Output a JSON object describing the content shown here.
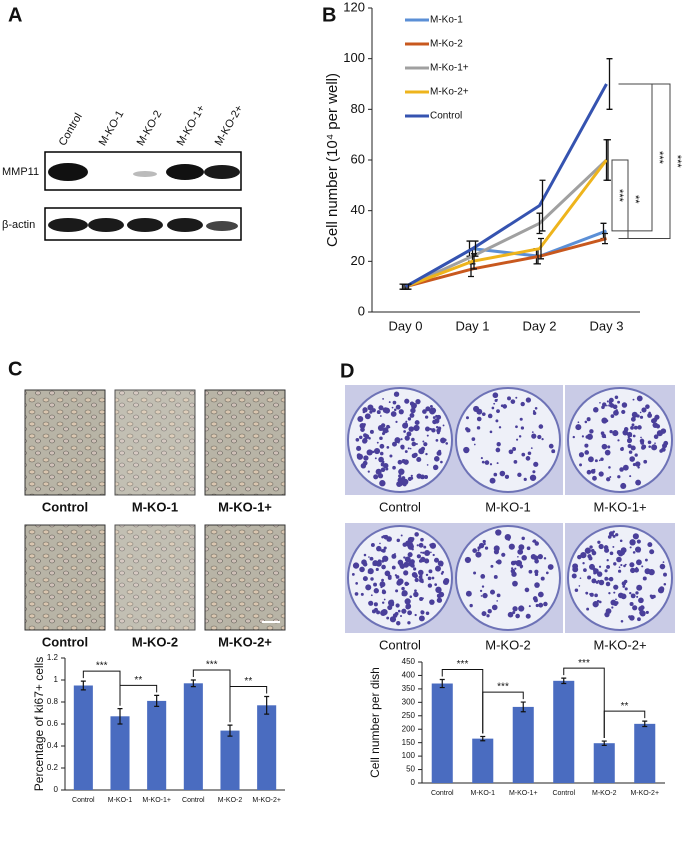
{
  "panel_labels": [
    "A",
    "B",
    "C",
    "D"
  ],
  "blot": {
    "lanes": [
      "Control",
      "M-KO-1",
      "M-KO-2",
      "M-KO-1+",
      "M-KO-2+"
    ],
    "rows": [
      "MMP11",
      "β-actin"
    ]
  },
  "micrographs": {
    "captions": [
      "Control",
      "M-KO-1",
      "M-KO-1+",
      "Control",
      "M-KO-2",
      "M-KO-2+"
    ]
  },
  "colony_dishes": {
    "captions": [
      "Control",
      "M-KO-1",
      "M-KO-1+",
      "Control",
      "M-KO-2",
      "M-KO-2+"
    ]
  },
  "chart_data": [
    {
      "type": "line",
      "ylabel": "Cell number (10⁴ per well)",
      "categories": [
        "Day 0",
        "Day 1",
        "Day 2",
        "Day 3"
      ],
      "series": [
        {
          "name": "M-Ko-1",
          "color": "#5b8fd6",
          "values": [
            10,
            25,
            22,
            32
          ],
          "errors": [
            1,
            3,
            3,
            3
          ]
        },
        {
          "name": "M-Ko-2",
          "color": "#c8581e",
          "values": [
            10,
            17,
            22,
            29
          ],
          "errors": [
            1,
            3,
            3,
            2
          ]
        },
        {
          "name": "M-Ko-1+",
          "color": "#a0a0a0",
          "values": [
            10,
            22,
            35,
            60
          ],
          "errors": [
            1,
            3,
            4,
            8
          ]
        },
        {
          "name": "M-Ko-2+",
          "color": "#eeb41c",
          "values": [
            10,
            20,
            25,
            60
          ],
          "errors": [
            1,
            3,
            4,
            8
          ]
        },
        {
          "name": "Control",
          "color": "#3553b0",
          "values": [
            10,
            25,
            42,
            90
          ],
          "errors": [
            1,
            3,
            10,
            10
          ]
        }
      ],
      "ylim": [
        0,
        120
      ],
      "yticks": [
        0,
        20,
        40,
        60,
        80,
        100,
        120
      ],
      "legend": "upper left",
      "significance_labels": [
        "***",
        "**",
        "***",
        "***"
      ]
    },
    {
      "type": "bar",
      "ylabel": "Percentage of ki67+ cells",
      "categories": [
        "Control",
        "M-KO-1",
        "M-KO-1+",
        "Control",
        "M-KO-2",
        "M-KO-2+"
      ],
      "values": [
        0.95,
        0.67,
        0.81,
        0.97,
        0.54,
        0.77
      ],
      "errors": [
        0.04,
        0.07,
        0.05,
        0.03,
        0.05,
        0.08
      ],
      "color": "#4a6cc0",
      "ylim": [
        0,
        1.2
      ],
      "yticks": [
        0,
        0.2,
        0.4,
        0.6,
        0.8,
        1,
        1.2
      ],
      "significance_labels": [
        "***",
        "**",
        "***",
        "**"
      ]
    },
    {
      "type": "bar",
      "ylabel": "Cell number per dish",
      "categories": [
        "Control",
        "M-KO-1",
        "M-KO-1+",
        "Control",
        "M-KO-2",
        "M-KO-2+"
      ],
      "values": [
        370,
        165,
        283,
        380,
        148,
        220
      ],
      "errors": [
        15,
        8,
        18,
        10,
        8,
        10
      ],
      "color": "#4a6cc0",
      "ylim": [
        0,
        450
      ],
      "yticks": [
        0,
        50,
        100,
        150,
        200,
        250,
        300,
        350,
        400,
        450
      ],
      "significance_labels": [
        "***",
        "***",
        "***",
        "**"
      ]
    }
  ]
}
